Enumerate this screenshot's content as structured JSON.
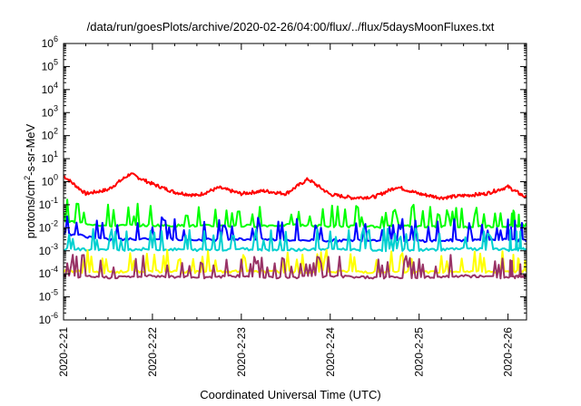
{
  "chart_data": {
    "type": "line",
    "title": "/data/run/goesPlots/archive/2020-02-26/04:00/flux/../flux/5daysMoonFluxes.txt",
    "xlabel": "Coordinated Universal Time (UTC)",
    "ylabel": {
      "pre": "protons/cm",
      "sup": "2",
      "post": "-s-sr-MeV"
    },
    "yscale": "log",
    "ylim": [
      1e-06,
      1000000.0
    ],
    "ytick_labels": [
      {
        "base": "10",
        "exp": "-6"
      },
      {
        "base": "10",
        "exp": "-5"
      },
      {
        "base": "10",
        "exp": "-4"
      },
      {
        "base": "10",
        "exp": "-3"
      },
      {
        "base": "10",
        "exp": "-2"
      },
      {
        "base": "10",
        "exp": "-1"
      },
      {
        "base": "10",
        "exp": "0"
      },
      {
        "base": "10",
        "exp": "1"
      },
      {
        "base": "10",
        "exp": "2"
      },
      {
        "base": "10",
        "exp": "3"
      },
      {
        "base": "10",
        "exp": "4"
      },
      {
        "base": "10",
        "exp": "5"
      },
      {
        "base": "10",
        "exp": "6"
      }
    ],
    "x_range": [
      "2020-02-21",
      "2020-02-26 05:00"
    ],
    "x_tick_labels": [
      "2020-2-21",
      "2020-2-22",
      "2020-2-23",
      "2020-2-24",
      "2020-2-25",
      "2020-2-26"
    ],
    "grid": false,
    "legend": "none",
    "series": [
      {
        "color": "#ff0000",
        "x": [
          "2020-02-21 00:00",
          "2020-02-21 06:00",
          "2020-02-21 12:00",
          "2020-02-21 18:00",
          "2020-02-22 00:00",
          "2020-02-22 06:00",
          "2020-02-22 12:00",
          "2020-02-22 18:00",
          "2020-02-23 00:00",
          "2020-02-23 06:00",
          "2020-02-23 12:00",
          "2020-02-23 18:00",
          "2020-02-24 00:00",
          "2020-02-24 06:00",
          "2020-02-24 12:00",
          "2020-02-24 18:00",
          "2020-02-25 00:00",
          "2020-02-25 06:00",
          "2020-02-25 12:00",
          "2020-02-25 18:00",
          "2020-02-26 00:00",
          "2020-02-26 05:00"
        ],
        "values": [
          1.8,
          0.3,
          0.45,
          2.2,
          0.8,
          0.35,
          0.25,
          0.55,
          0.3,
          0.4,
          0.3,
          1.3,
          0.28,
          0.2,
          0.22,
          0.6,
          0.3,
          0.2,
          0.25,
          0.3,
          0.6,
          0.2
        ]
      },
      {
        "color": "#00ff00",
        "x": [
          "2020-02-21 00:00",
          "2020-02-21 12:00",
          "2020-02-22 00:00",
          "2020-02-22 12:00",
          "2020-02-23 00:00",
          "2020-02-23 12:00",
          "2020-02-24 00:00",
          "2020-02-24 12:00",
          "2020-02-25 00:00",
          "2020-02-25 12:00",
          "2020-02-26 00:00",
          "2020-02-26 05:00"
        ],
        "values": [
          0.02,
          0.012,
          0.013,
          0.012,
          0.012,
          0.013,
          0.012,
          0.011,
          0.012,
          0.011,
          0.012,
          0.013
        ]
      },
      {
        "color": "#0000ff",
        "x": [
          "2020-02-21 00:00",
          "2020-02-21 12:00",
          "2020-02-22 00:00",
          "2020-02-22 12:00",
          "2020-02-23 00:00",
          "2020-02-23 12:00",
          "2020-02-24 00:00",
          "2020-02-24 12:00",
          "2020-02-25 00:00",
          "2020-02-25 12:00",
          "2020-02-26 00:00",
          "2020-02-26 05:00"
        ],
        "values": [
          0.006,
          0.003,
          0.0035,
          0.003,
          0.0032,
          0.003,
          0.0028,
          0.003,
          0.0027,
          0.0029,
          0.003,
          0.0028
        ]
      },
      {
        "color": "#00d0d0",
        "x": [
          "2020-02-21 00:00",
          "2020-02-21 12:00",
          "2020-02-22 00:00",
          "2020-02-22 12:00",
          "2020-02-23 00:00",
          "2020-02-23 12:00",
          "2020-02-24 00:00",
          "2020-02-24 12:00",
          "2020-02-25 00:00",
          "2020-02-25 12:00",
          "2020-02-26 00:00",
          "2020-02-26 05:00"
        ],
        "values": [
          0.0012,
          0.0011,
          0.0012,
          0.0011,
          0.0012,
          0.0011,
          0.0012,
          0.0011,
          0.0011,
          0.0012,
          0.0011,
          0.0012
        ]
      },
      {
        "color": "#ffff00",
        "x": [
          "2020-02-21 00:00",
          "2020-02-21 12:00",
          "2020-02-22 00:00",
          "2020-02-22 12:00",
          "2020-02-23 00:00",
          "2020-02-23 12:00",
          "2020-02-24 00:00",
          "2020-02-24 12:00",
          "2020-02-25 00:00",
          "2020-02-25 12:00",
          "2020-02-26 00:00",
          "2020-02-26 05:00"
        ],
        "values": [
          0.00013,
          0.00012,
          0.00013,
          0.00012,
          0.00013,
          0.00012,
          0.00013,
          0.00012,
          0.00012,
          0.00013,
          0.00012,
          0.00013
        ]
      },
      {
        "color": "#993366",
        "x": [
          "2020-02-21 00:00",
          "2020-02-21 12:00",
          "2020-02-22 00:00",
          "2020-02-22 12:00",
          "2020-02-23 00:00",
          "2020-02-23 12:00",
          "2020-02-24 00:00",
          "2020-02-24 12:00",
          "2020-02-25 00:00",
          "2020-02-25 12:00",
          "2020-02-26 00:00",
          "2020-02-26 05:00"
        ],
        "values": [
          8e-05,
          7e-05,
          8e-05,
          7e-05,
          8e-05,
          7e-05,
          8e-05,
          7e-05,
          7e-05,
          8e-05,
          7e-05,
          8e-05
        ]
      }
    ]
  }
}
